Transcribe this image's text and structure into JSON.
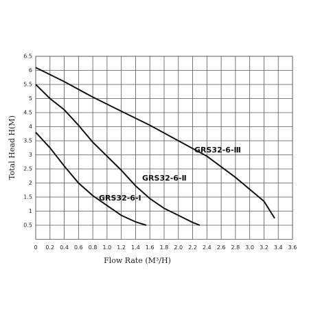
{
  "chart_data": {
    "type": "line",
    "x_label": "Flow Rate (M³/H)",
    "y_label": "Total Head H(M)",
    "xlim": [
      0,
      3.6
    ],
    "xticks": [
      0,
      0.2,
      0.4,
      0.6,
      0.8,
      {
        "value": 1.0,
        "label": "1.0"
      },
      1.2,
      1.4,
      1.6,
      1.8,
      {
        "value": 2.0,
        "label": "2.0"
      },
      2.2,
      2.4,
      2.6,
      2.8,
      {
        "value": 3.0,
        "label": "3.0"
      },
      3.2,
      3.4,
      3.6
    ],
    "ylim": [
      0,
      6.5
    ],
    "yticks": [
      0.5,
      1,
      1.5,
      2,
      2.5,
      3,
      3.5,
      4,
      4.5,
      5,
      5.5,
      6,
      6.5
    ],
    "grid": true,
    "series": [
      {
        "name": "GRS32-6-Ⅰ",
        "color": "#111111",
        "x": [
          0,
          0.2,
          0.4,
          0.6,
          0.8,
          1.0,
          1.2,
          1.4,
          1.55
        ],
        "values": [
          3.8,
          3.25,
          2.6,
          2.0,
          1.55,
          1.2,
          0.85,
          0.62,
          0.5
        ]
      },
      {
        "name": "GRS32-6-Ⅱ",
        "color": "#111111",
        "x": [
          0,
          0.2,
          0.4,
          0.6,
          0.8,
          1.0,
          1.2,
          1.4,
          1.6,
          1.8,
          2.0,
          2.2,
          2.3
        ],
        "values": [
          5.5,
          5.0,
          4.6,
          4.05,
          3.45,
          2.95,
          2.45,
          1.9,
          1.45,
          1.1,
          0.85,
          0.6,
          0.5
        ]
      },
      {
        "name": "GRS32-6-Ⅲ",
        "color": "#111111",
        "x": [
          0,
          0.4,
          0.8,
          1.2,
          1.6,
          2.0,
          2.4,
          2.8,
          3.2,
          3.35
        ],
        "values": [
          6.1,
          5.6,
          5.05,
          4.55,
          4.05,
          3.5,
          2.95,
          2.2,
          1.35,
          0.75
        ]
      }
    ]
  }
}
